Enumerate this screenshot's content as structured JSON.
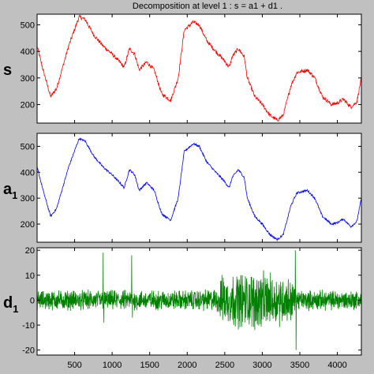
{
  "figure": {
    "title": "Decomposition at level 1 : s = a1 + d1 .",
    "background": "#c0c0c0"
  },
  "chart_data": [
    {
      "type": "line",
      "label_main": "s",
      "label_sub": "",
      "color": "#ff0000",
      "ylim": [
        130,
        540
      ],
      "yticks": [
        200,
        300,
        400,
        500
      ],
      "xlim": [
        0,
        4320
      ],
      "xticks": [
        500,
        1000,
        1500,
        2000,
        2500,
        3000,
        3500,
        4000
      ],
      "noise": 7,
      "x": [
        0,
        80,
        180,
        260,
        420,
        560,
        640,
        760,
        880,
        1000,
        1100,
        1160,
        1230,
        1300,
        1360,
        1460,
        1560,
        1660,
        1780,
        1880,
        1960,
        2080,
        2160,
        2260,
        2380,
        2480,
        2560,
        2600,
        2680,
        2760,
        2800,
        2900,
        3000,
        3100,
        3200,
        3280,
        3380,
        3460,
        3600,
        3700,
        3800,
        3920,
        4000,
        4080,
        4180,
        4260,
        4320
      ],
      "y": [
        420,
        330,
        230,
        260,
        420,
        530,
        520,
        460,
        420,
        390,
        360,
        340,
        410,
        390,
        330,
        360,
        330,
        240,
        215,
        300,
        480,
        510,
        500,
        440,
        400,
        370,
        340,
        380,
        410,
        380,
        300,
        230,
        200,
        160,
        140,
        160,
        270,
        320,
        330,
        300,
        230,
        200,
        205,
        220,
        190,
        210,
        300
      ]
    },
    {
      "type": "line",
      "label_main": "a",
      "label_sub": "1",
      "color": "#0000ff",
      "ylim": [
        130,
        550
      ],
      "yticks": [
        200,
        300,
        400,
        500
      ],
      "xlim": [
        0,
        4320
      ],
      "xticks": [
        500,
        1000,
        1500,
        2000,
        2500,
        3000,
        3500,
        4000
      ],
      "noise": 4,
      "x": [
        0,
        80,
        180,
        260,
        420,
        560,
        640,
        760,
        880,
        1000,
        1100,
        1160,
        1230,
        1300,
        1360,
        1460,
        1560,
        1660,
        1780,
        1880,
        1960,
        2080,
        2160,
        2260,
        2380,
        2480,
        2560,
        2600,
        2680,
        2760,
        2800,
        2900,
        3000,
        3100,
        3200,
        3280,
        3380,
        3460,
        3600,
        3700,
        3800,
        3920,
        4000,
        4080,
        4180,
        4260,
        4320
      ],
      "y": [
        420,
        330,
        230,
        260,
        420,
        530,
        520,
        460,
        420,
        390,
        360,
        340,
        410,
        390,
        330,
        360,
        330,
        240,
        215,
        300,
        480,
        510,
        500,
        440,
        400,
        370,
        340,
        380,
        410,
        380,
        300,
        230,
        200,
        160,
        140,
        160,
        270,
        320,
        330,
        300,
        230,
        200,
        205,
        220,
        190,
        210,
        300
      ]
    },
    {
      "type": "line",
      "label_main": "d",
      "label_sub": "1",
      "color": "#008000",
      "ylim": [
        -22,
        21
      ],
      "yticks": [
        -20,
        -10,
        0,
        10,
        20
      ],
      "xlim": [
        0,
        4320
      ],
      "xticks": [
        500,
        1000,
        1500,
        2000,
        2500,
        3000,
        3500,
        4000
      ],
      "envelope_x": [
        0,
        800,
        1300,
        2100,
        2400,
        2450,
        2700,
        3000,
        3300,
        3420,
        3440,
        4320
      ],
      "envelope_amp": [
        2.5,
        2.5,
        2.5,
        2.5,
        3,
        6,
        7,
        7,
        6,
        5,
        2.5,
        2.5
      ],
      "spikes": [
        [
          880,
          19
        ],
        [
          890,
          -9
        ],
        [
          1260,
          18
        ],
        [
          1270,
          -7
        ],
        [
          2480,
          9
        ],
        [
          2900,
          -12
        ],
        [
          3440,
          20
        ],
        [
          3450,
          -20
        ]
      ]
    }
  ]
}
